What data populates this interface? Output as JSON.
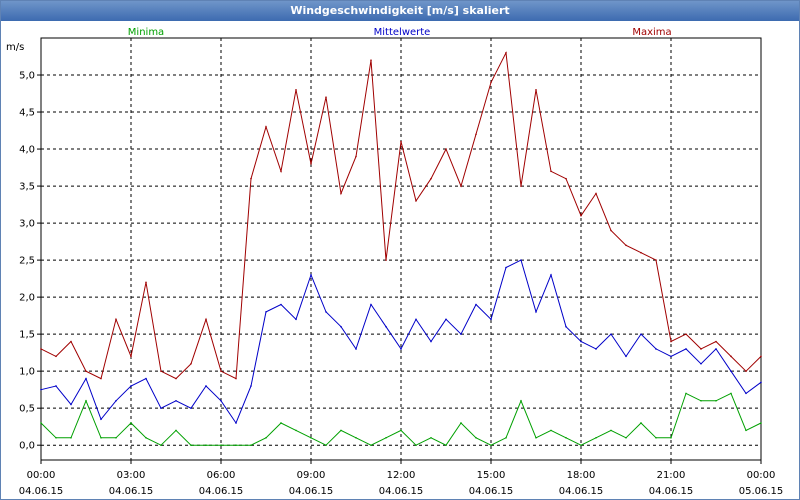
{
  "window": {
    "title": "Windgeschwindigkeit [m/s] skaliert"
  },
  "chart_data": {
    "type": "line",
    "title": "Windgeschwindigkeit [m/s] skaliert",
    "ylabel": "m/s",
    "xlabel": "",
    "ylim": [
      -0.2,
      5.5
    ],
    "xlim_hours": [
      0,
      24
    ],
    "grid": true,
    "y_ticks": [
      {
        "value": 0.0,
        "label": "0,0"
      },
      {
        "value": 0.5,
        "label": "0,5"
      },
      {
        "value": 1.0,
        "label": "1,0"
      },
      {
        "value": 1.5,
        "label": "1,5"
      },
      {
        "value": 2.0,
        "label": "2,0"
      },
      {
        "value": 2.5,
        "label": "2,5"
      },
      {
        "value": 3.0,
        "label": "3,0"
      },
      {
        "value": 3.5,
        "label": "3,5"
      },
      {
        "value": 4.0,
        "label": "4,0"
      },
      {
        "value": 4.5,
        "label": "4,5"
      },
      {
        "value": 5.0,
        "label": "5,0"
      }
    ],
    "x_ticks": [
      {
        "hour": 0,
        "time": "00:00",
        "date": "04.06.15"
      },
      {
        "hour": 3,
        "time": "03:00",
        "date": "04.06.15"
      },
      {
        "hour": 6,
        "time": "06:00",
        "date": "04.06.15"
      },
      {
        "hour": 9,
        "time": "09:00",
        "date": "04.06.15"
      },
      {
        "hour": 12,
        "time": "12:00",
        "date": "04.06.15"
      },
      {
        "hour": 15,
        "time": "15:00",
        "date": "04.06.15"
      },
      {
        "hour": 18,
        "time": "18:00",
        "date": "04.06.15"
      },
      {
        "hour": 21,
        "time": "21:00",
        "date": "04.06.15"
      },
      {
        "hour": 24,
        "time": "00:00",
        "date": "05.06.15"
      }
    ],
    "series": [
      {
        "name": "Minima",
        "color": "#00a000",
        "legend_position": "top-left",
        "x": [
          0,
          0.5,
          1,
          1.5,
          2,
          2.5,
          3,
          3.5,
          4,
          4.5,
          5,
          5.5,
          6,
          6.5,
          7,
          7.5,
          8,
          8.5,
          9,
          9.5,
          10,
          10.5,
          11,
          11.5,
          12,
          12.5,
          13,
          13.5,
          14,
          14.5,
          15,
          15.5,
          16,
          16.5,
          17,
          17.5,
          18,
          18.5,
          19,
          19.5,
          20,
          20.5,
          21,
          21.5,
          22,
          22.5,
          23,
          23.5,
          24
        ],
        "values": [
          0.3,
          0.1,
          0.1,
          0.6,
          0.1,
          0.1,
          0.3,
          0.1,
          0.0,
          0.2,
          0.0,
          0.0,
          0.0,
          0.0,
          0.0,
          0.1,
          0.3,
          0.2,
          0.1,
          0.0,
          0.2,
          0.1,
          0.0,
          0.1,
          0.2,
          0.0,
          0.1,
          0.0,
          0.3,
          0.1,
          0.0,
          0.1,
          0.6,
          0.1,
          0.2,
          0.1,
          0.0,
          0.1,
          0.2,
          0.1,
          0.3,
          0.1,
          0.1,
          0.7,
          0.6,
          0.6,
          0.7,
          0.2,
          0.3
        ]
      },
      {
        "name": "Mittelwerte",
        "color": "#0000c8",
        "legend_position": "top-center",
        "x": [
          0,
          0.5,
          1,
          1.5,
          2,
          2.5,
          3,
          3.5,
          4,
          4.5,
          5,
          5.5,
          6,
          6.5,
          7,
          7.5,
          8,
          8.5,
          9,
          9.5,
          10,
          10.5,
          11,
          11.5,
          12,
          12.5,
          13,
          13.5,
          14,
          14.5,
          15,
          15.5,
          16,
          16.5,
          17,
          17.5,
          18,
          18.5,
          19,
          19.5,
          20,
          20.5,
          21,
          21.5,
          22,
          22.5,
          23,
          23.5,
          24
        ],
        "values": [
          0.75,
          0.8,
          0.55,
          0.9,
          0.35,
          0.6,
          0.8,
          0.9,
          0.5,
          0.6,
          0.5,
          0.8,
          0.6,
          0.3,
          0.8,
          1.8,
          1.9,
          1.7,
          2.3,
          1.8,
          1.6,
          1.3,
          1.9,
          1.6,
          1.3,
          1.7,
          1.4,
          1.7,
          1.5,
          1.9,
          1.7,
          2.4,
          2.5,
          1.8,
          2.3,
          1.6,
          1.4,
          1.3,
          1.5,
          1.2,
          1.5,
          1.3,
          1.2,
          1.3,
          1.1,
          1.3,
          1.0,
          0.7,
          0.85
        ]
      },
      {
        "name": "Maxima",
        "color": "#a00000",
        "legend_position": "top-right",
        "x": [
          0,
          0.5,
          1,
          1.5,
          2,
          2.5,
          3,
          3.5,
          4,
          4.5,
          5,
          5.5,
          6,
          6.5,
          7,
          7.5,
          8,
          8.5,
          9,
          9.5,
          10,
          10.5,
          11,
          11.5,
          12,
          12.5,
          13,
          13.5,
          14,
          14.5,
          15,
          15.5,
          16,
          16.5,
          17,
          17.5,
          18,
          18.5,
          19,
          19.5,
          20,
          20.5,
          21,
          21.5,
          22,
          22.5,
          23,
          23.5,
          24
        ],
        "values": [
          1.3,
          1.2,
          1.4,
          1.0,
          0.9,
          1.7,
          1.2,
          2.2,
          1.0,
          0.9,
          1.1,
          1.7,
          1.0,
          0.9,
          3.6,
          4.3,
          3.7,
          4.8,
          3.8,
          4.7,
          3.4,
          3.9,
          5.2,
          2.5,
          4.1,
          3.3,
          3.6,
          4.0,
          3.5,
          4.2,
          4.9,
          5.3,
          3.5,
          4.8,
          3.7,
          3.6,
          3.1,
          3.4,
          2.9,
          2.7,
          2.6,
          2.5,
          1.4,
          1.5,
          1.3,
          1.4,
          1.2,
          1.0,
          1.2
        ]
      }
    ]
  }
}
